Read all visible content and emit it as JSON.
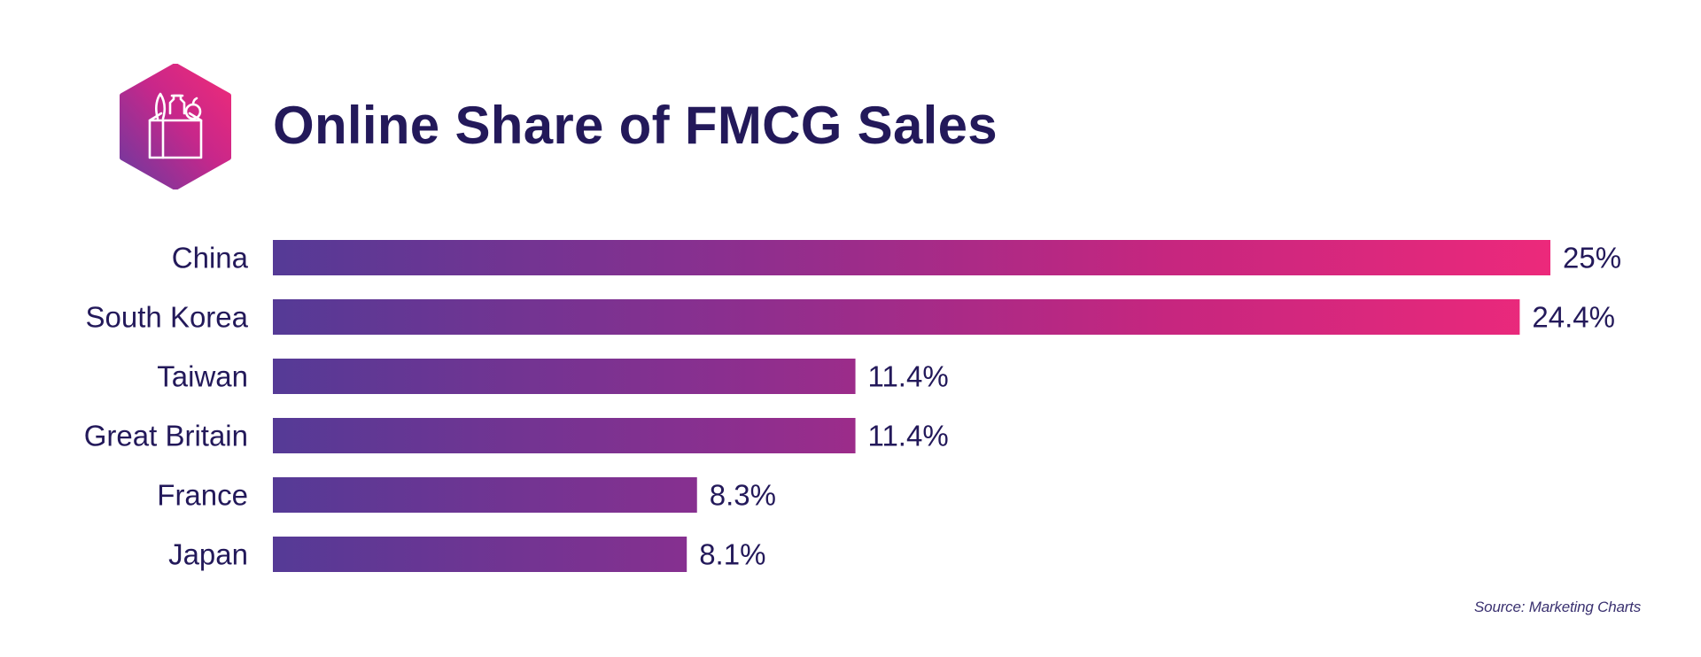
{
  "title": "Online Share of FMCG Sales",
  "source": "Source: Marketing Charts",
  "logo": {
    "icon": "grocery-bag-icon",
    "gradient_start": "#7a3aa8",
    "gradient_end": "#ee2a7b"
  },
  "colors": {
    "text": "#23195a",
    "bar_start": "#553a96",
    "bar_end": "#ec297b"
  },
  "chart_data": {
    "type": "bar",
    "orientation": "horizontal",
    "categories": [
      "China",
      "South Korea",
      "Taiwan",
      "Great Britain",
      "France",
      "Japan"
    ],
    "values": [
      25,
      24.4,
      11.4,
      11.4,
      8.3,
      8.1
    ],
    "value_labels": [
      "25%",
      "24.4%",
      "11.4%",
      "11.4%",
      "8.3%",
      "8.1%"
    ],
    "unit": "%",
    "title": "Online Share of FMCG Sales",
    "grid": false
  }
}
